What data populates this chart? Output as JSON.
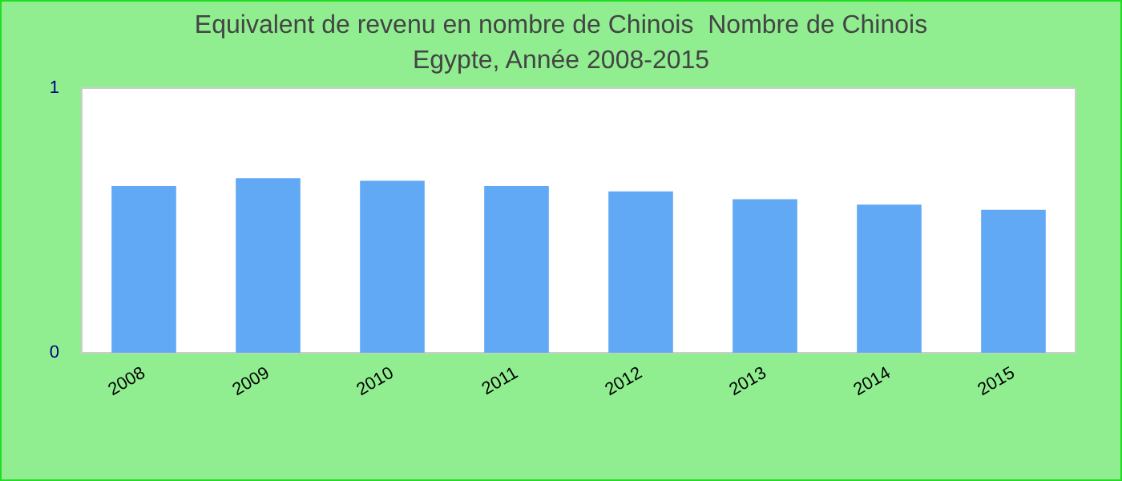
{
  "chart_data": {
    "type": "bar",
    "title": "Equivalent de revenu en nombre de Chinois  Nombre de Chinois",
    "subtitle": "Egypte, Année 2008-2015",
    "categories": [
      "2008",
      "2009",
      "2010",
      "2011",
      "2012",
      "2013",
      "2014",
      "2015"
    ],
    "values": [
      0.63,
      0.66,
      0.65,
      0.63,
      0.61,
      0.58,
      0.56,
      0.54
    ],
    "color": "#61a8f5",
    "ylim": [
      0,
      1
    ],
    "yticks": [
      0,
      1
    ]
  }
}
